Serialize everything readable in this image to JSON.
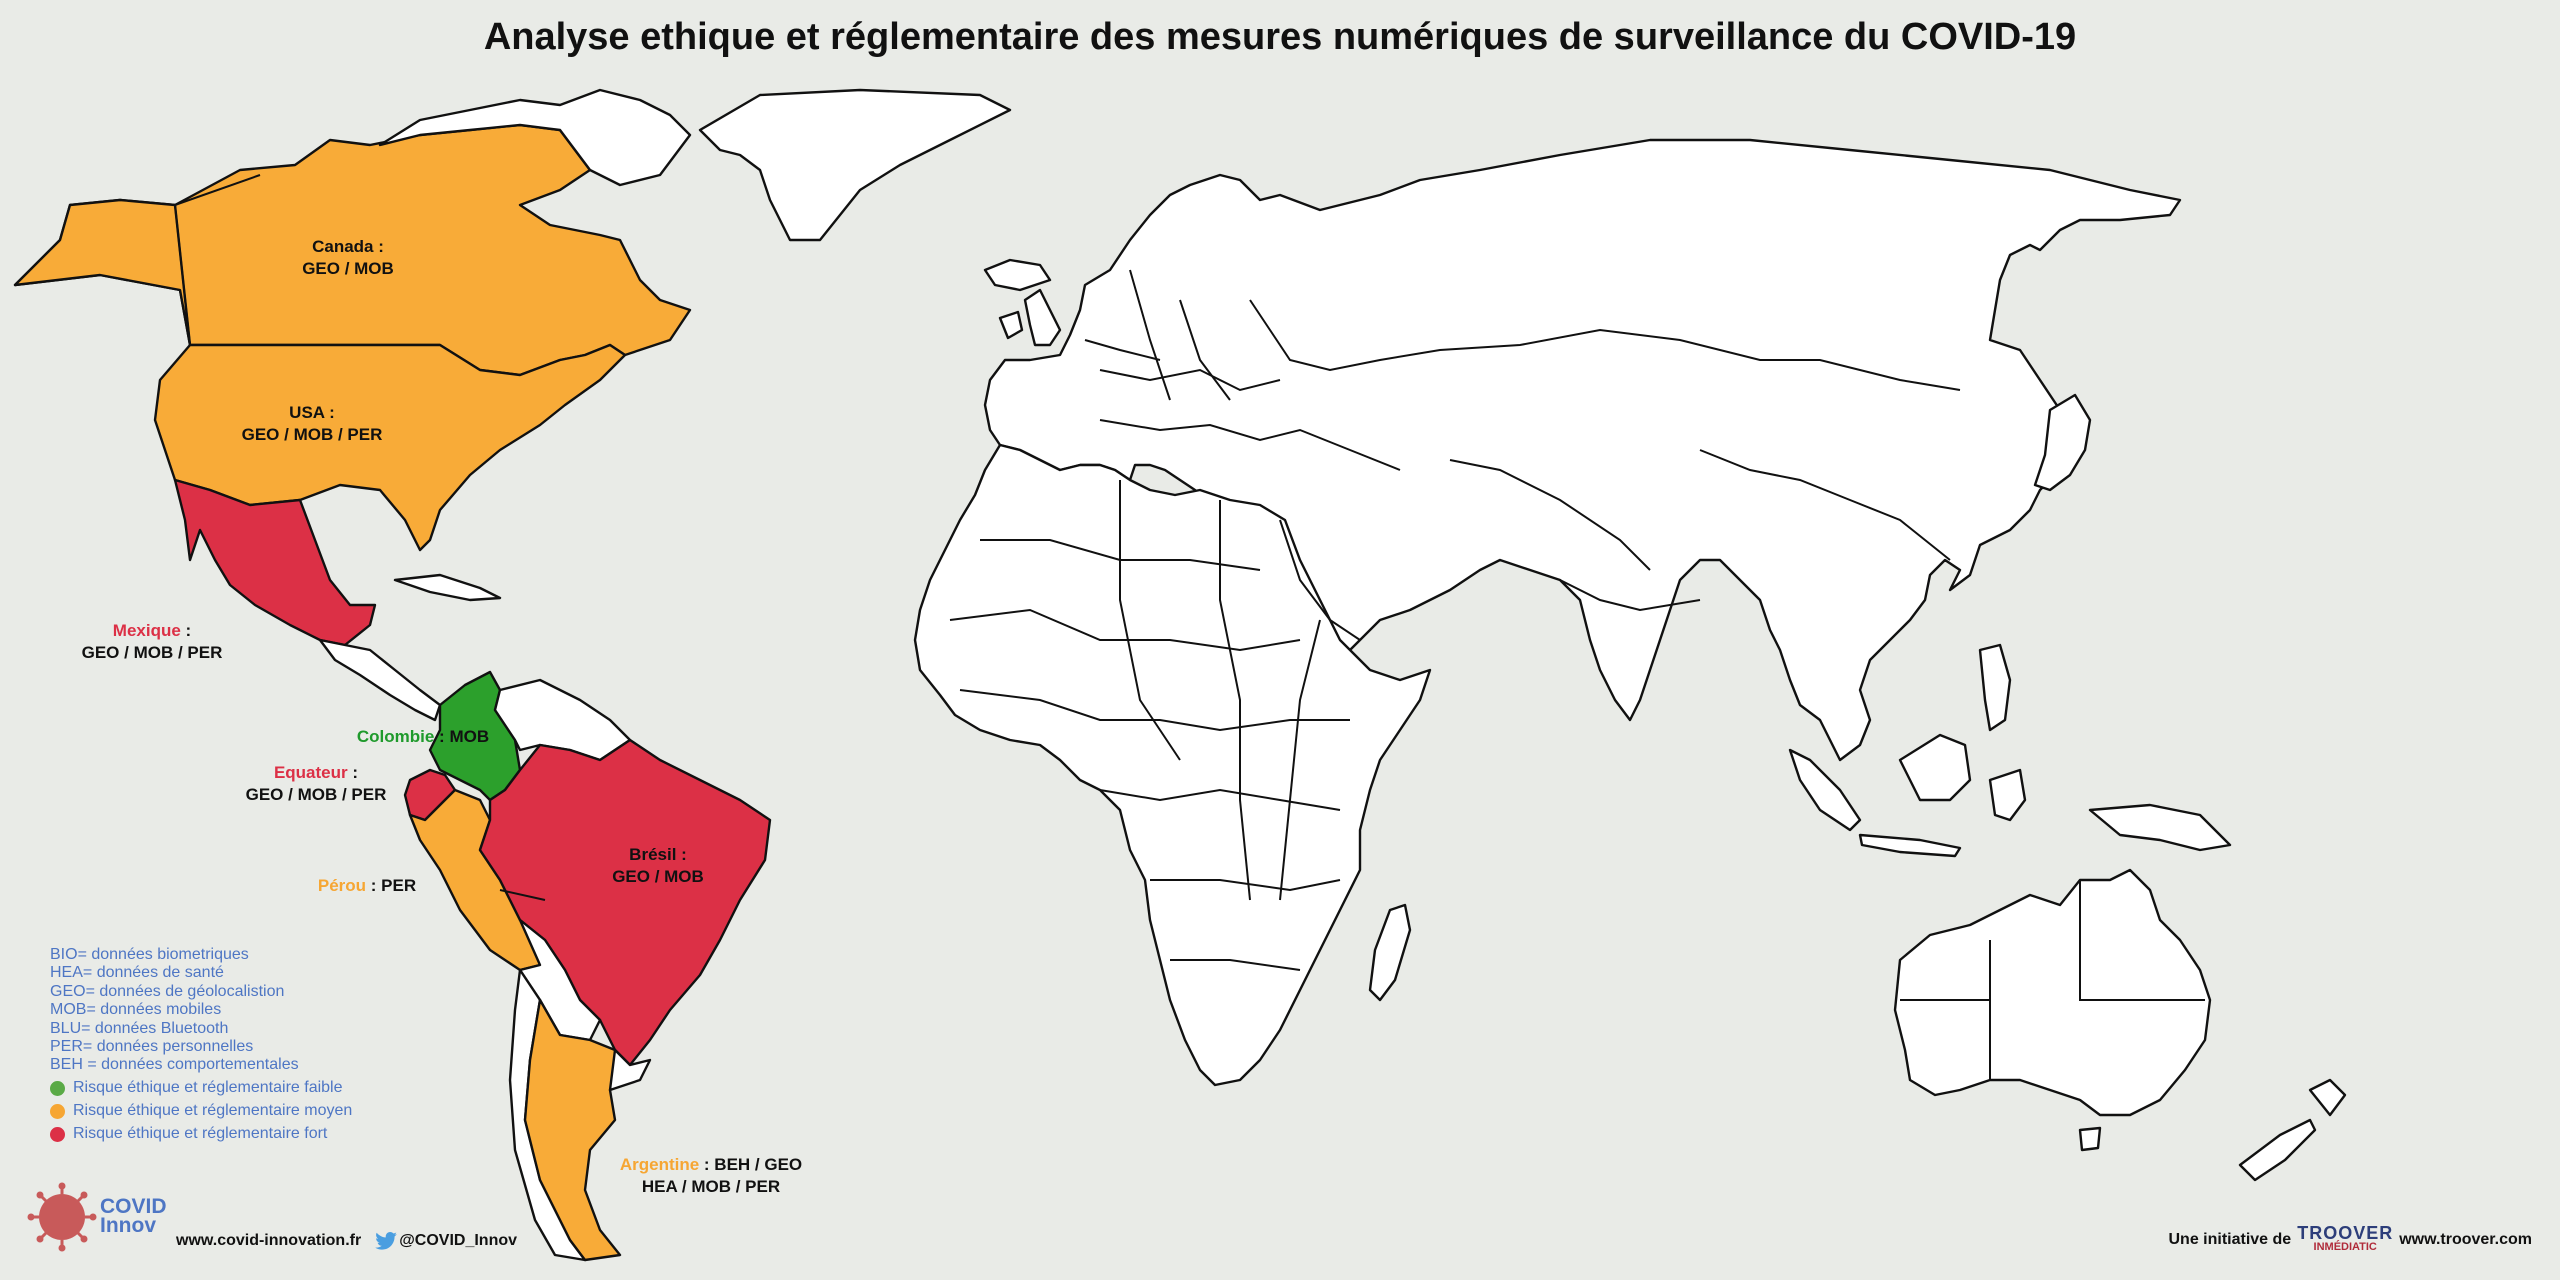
{
  "title": "Analyse ethique et réglementaire des mesures numériques de surveillance du COVID-19",
  "colors": {
    "ocean": "#e9ebe7",
    "low_risk": "#2ca02c",
    "medium_risk": "#f8ab38",
    "high_risk": "#dc3046",
    "neutral": "#ffffff",
    "legend_text": "#4e76c4"
  },
  "countries": [
    {
      "id": "canada",
      "name": "Canada",
      "separator": " :",
      "measures": "GEO / MOB",
      "risk": "medium"
    },
    {
      "id": "usa",
      "name": "USA",
      "separator": " :",
      "measures": "GEO / MOB / PER",
      "risk": "medium"
    },
    {
      "id": "mexique",
      "name": "Mexique",
      "separator": " :",
      "measures": "GEO / MOB / PER",
      "risk": "high"
    },
    {
      "id": "colombie",
      "name": "Colombie",
      "separator": " : ",
      "measures": "MOB",
      "risk": "low"
    },
    {
      "id": "equateur",
      "name": "Equateur",
      "separator": " :",
      "measures": "GEO / MOB / PER",
      "risk": "high"
    },
    {
      "id": "bresil",
      "name": "Brésil",
      "separator": " :",
      "measures": "GEO / MOB",
      "risk": "high"
    },
    {
      "id": "perou",
      "name": "Pérou",
      "separator": " : ",
      "measures": "PER",
      "risk": "medium"
    },
    {
      "id": "argentine",
      "name": "Argentine",
      "separator": " : ",
      "measures": "BEH / GEO",
      "measures2": "HEA / MOB / PER",
      "risk": "medium"
    }
  ],
  "legend": {
    "abbreviations": [
      "BIO= données biometriques",
      "HEA= données de santé",
      "GEO= données de géolocalistion",
      "MOB= données mobiles",
      "BLU= données Bluetooth",
      "PER= données personnelles",
      "BEH = données comportementales"
    ],
    "risks": [
      {
        "label": "Risque éthique et réglementaire faible",
        "color": "#5aaa46"
      },
      {
        "label": "Risque éthique et réglementaire moyen",
        "color": "#f6a633"
      },
      {
        "label": "Risque éthique et réglementaire fort",
        "color": "#dc3046"
      }
    ]
  },
  "logo": {
    "line1": "COVID",
    "line2": "Innov"
  },
  "footer": {
    "website": "www.covid-innovation.fr",
    "twitter": "@COVID_Innov",
    "initiative": "Une initiative de",
    "partner_line1": "TROOVER",
    "partner_line2": "INMÉDIATIC",
    "partner_site": "www.troover.com"
  }
}
